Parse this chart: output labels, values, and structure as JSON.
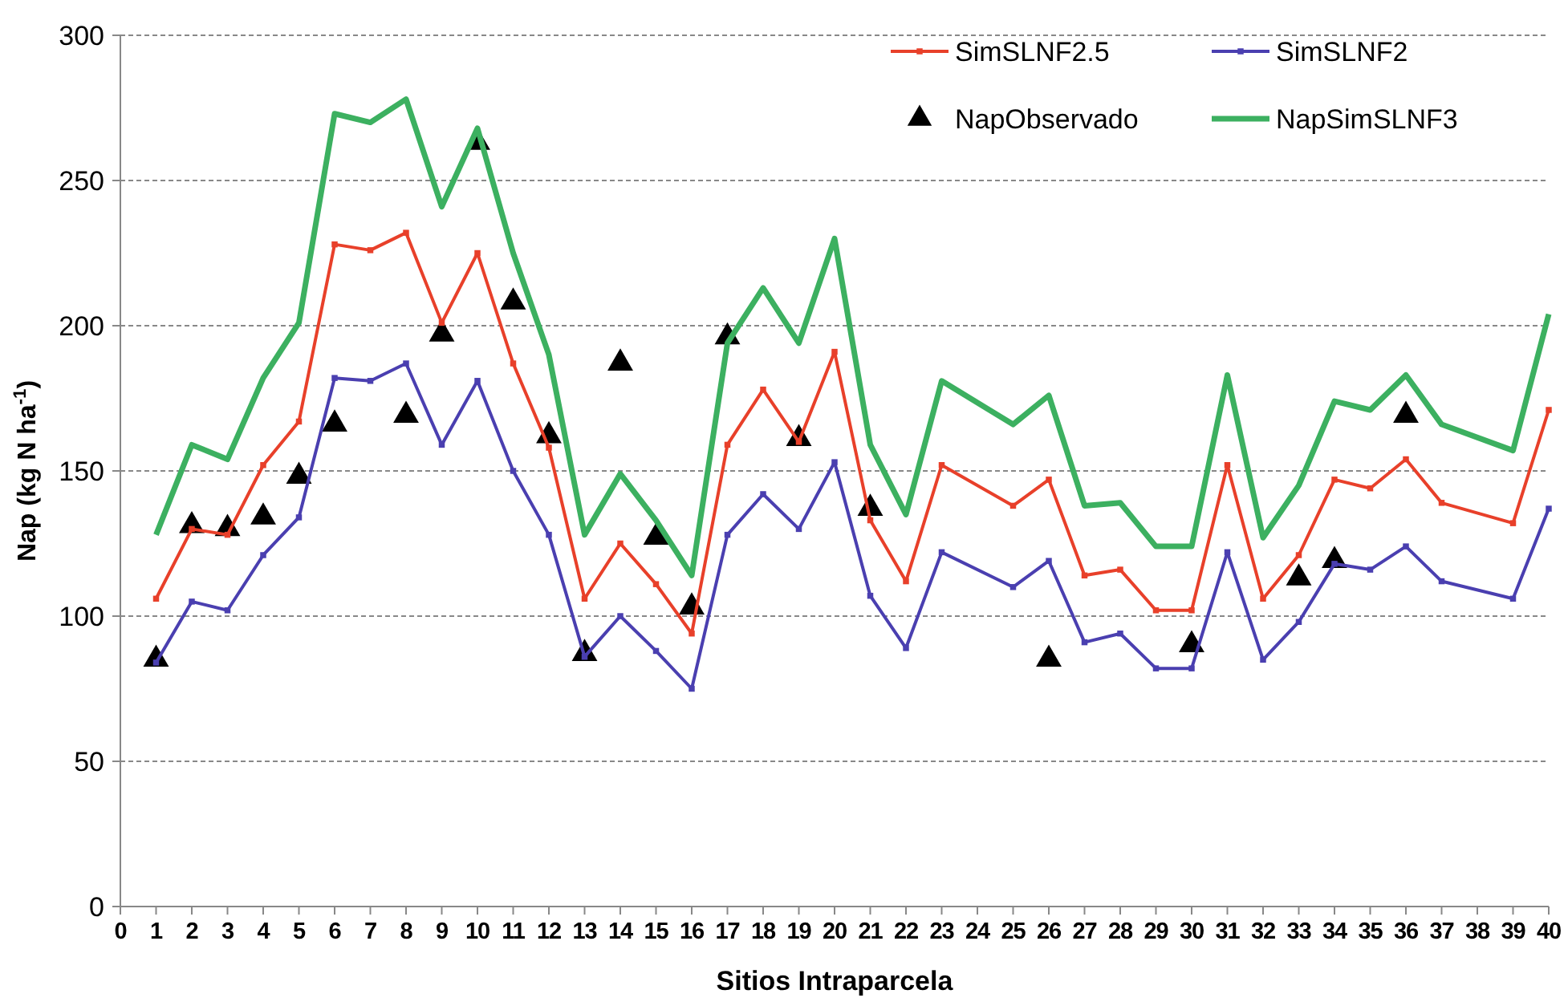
{
  "chart_data": {
    "type": "line",
    "xlabel": "Sitios Intraparcela",
    "ylabel": "Nap (kg N ha$^{-1}$)",
    "xlim": [
      0,
      40
    ],
    "xticks": [
      0,
      1,
      2,
      3,
      4,
      5,
      6,
      7,
      8,
      9,
      10,
      11,
      12,
      13,
      14,
      15,
      16,
      17,
      18,
      19,
      20,
      21,
      22,
      23,
      24,
      25,
      26,
      27,
      28,
      29,
      30,
      31,
      32,
      33,
      34,
      35,
      36,
      37,
      38,
      39,
      40
    ],
    "ylim": [
      0,
      300
    ],
    "yticks": [
      0,
      50,
      100,
      150,
      200,
      250,
      300
    ],
    "grid": "y",
    "legend": "top right",
    "series": [
      {
        "name": "SimSLNF2.5",
        "color": "#e8402a",
        "marker": "square",
        "x": [
          1,
          2,
          3,
          4,
          5,
          6,
          7,
          8,
          9,
          10,
          11,
          12,
          13,
          14,
          15,
          16,
          17,
          18,
          19,
          20,
          21,
          22,
          23,
          25,
          26,
          27,
          28,
          29,
          30,
          31,
          32,
          33,
          34,
          35,
          36,
          37,
          39,
          40
        ],
        "values": [
          106,
          130,
          128,
          152,
          167,
          228,
          226,
          232,
          201,
          225,
          187,
          158,
          106,
          125,
          111,
          94,
          159,
          178,
          160,
          191,
          133,
          112,
          152,
          138,
          147,
          114,
          116,
          102,
          102,
          152,
          106,
          121,
          147,
          144,
          154,
          139,
          132,
          171
        ]
      },
      {
        "name": "SimSLNF2",
        "color": "#4a3fb0",
        "marker": "square",
        "x": [
          1,
          2,
          3,
          4,
          5,
          6,
          7,
          8,
          9,
          10,
          11,
          12,
          13,
          14,
          15,
          16,
          17,
          18,
          19,
          20,
          21,
          22,
          23,
          25,
          26,
          27,
          28,
          29,
          30,
          31,
          32,
          33,
          34,
          35,
          36,
          37,
          39,
          40
        ],
        "values": [
          84,
          105,
          102,
          121,
          134,
          182,
          181,
          187,
          159,
          181,
          150,
          128,
          86,
          100,
          88,
          75,
          128,
          142,
          130,
          153,
          107,
          89,
          122,
          110,
          119,
          91,
          94,
          82,
          82,
          122,
          85,
          98,
          118,
          116,
          124,
          112,
          106,
          137
        ]
      },
      {
        "name": "NapObservado",
        "type": "scatter",
        "color": "#000000",
        "marker": "triangle",
        "x": [
          1,
          2,
          3,
          4,
          5,
          6,
          8,
          9,
          10,
          11,
          12,
          13,
          14,
          15,
          16,
          17,
          19,
          21,
          26,
          30,
          33,
          34,
          36
        ],
        "values": [
          84,
          130,
          129,
          133,
          147,
          165,
          168,
          196,
          262,
          207,
          161,
          86,
          186,
          126,
          102,
          195,
          160,
          136,
          84,
          89,
          112,
          118,
          168
        ]
      },
      {
        "name": "NapSimSLNF3",
        "color": "#3cb060",
        "marker": "none",
        "x": [
          1,
          2,
          3,
          4,
          5,
          6,
          7,
          8,
          9,
          10,
          11,
          12,
          13,
          14,
          15,
          16,
          17,
          18,
          19,
          20,
          21,
          22,
          23,
          25,
          26,
          27,
          28,
          29,
          30,
          31,
          32,
          33,
          34,
          35,
          36,
          37,
          39,
          40
        ],
        "values": [
          128,
          159,
          154,
          182,
          201,
          273,
          270,
          278,
          241,
          268,
          225,
          190,
          128,
          149,
          133,
          114,
          194,
          213,
          194,
          230,
          159,
          135,
          181,
          166,
          176,
          138,
          139,
          124,
          124,
          183,
          127,
          145,
          174,
          171,
          183,
          166,
          157,
          204
        ]
      }
    ]
  }
}
